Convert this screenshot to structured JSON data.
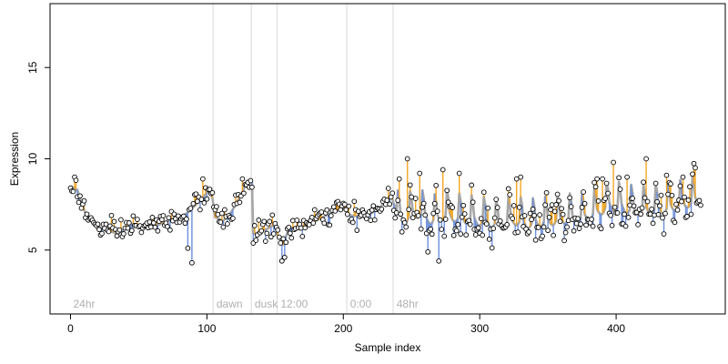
{
  "chart_data": {
    "type": "scatter",
    "title": "",
    "xlabel": "Sample index",
    "ylabel": "Expression",
    "xlim": [
      -15,
      480
    ],
    "ylim": [
      1.5,
      18.5
    ],
    "x_ticks": [
      0,
      100,
      200,
      300,
      400
    ],
    "y_ticks": [
      5,
      10,
      15
    ],
    "grid": false,
    "legend": "none",
    "colors": {
      "trend_line": "#a6a6a6",
      "residual_up": "#f5a623",
      "residual_down": "#6d8fdc",
      "point_stroke": "#000000",
      "point_fill": "#ffffff",
      "separator": "#d9d9d9",
      "segment_label": "#b0b0b0"
    },
    "segments": [
      {
        "label": "24hr",
        "start": 0
      },
      {
        "label": "dawn",
        "start": 105
      },
      {
        "label": "dusk",
        "start": 133
      },
      {
        "label": "12:00",
        "start": 152
      },
      {
        "label": "0:00",
        "start": 203
      },
      {
        "label": "48hr",
        "start": 237
      }
    ],
    "trend_knots": [
      [
        0,
        8.5
      ],
      [
        5,
        8.3
      ],
      [
        8,
        7.6
      ],
      [
        12,
        6.8
      ],
      [
        18,
        6.4
      ],
      [
        25,
        6.1
      ],
      [
        35,
        5.9
      ],
      [
        45,
        6.4
      ],
      [
        55,
        6.3
      ],
      [
        65,
        6.4
      ],
      [
        75,
        6.7
      ],
      [
        85,
        7.0
      ],
      [
        95,
        7.7
      ],
      [
        103,
        8.4
      ],
      [
        106,
        6.8
      ],
      [
        112,
        6.6
      ],
      [
        118,
        7.1
      ],
      [
        124,
        7.9
      ],
      [
        130,
        8.8
      ],
      [
        133,
        8.7
      ],
      [
        134,
        5.9
      ],
      [
        140,
        6.0
      ],
      [
        150,
        6.4
      ],
      [
        152,
        5.8
      ],
      [
        156,
        5.3
      ],
      [
        160,
        6.2
      ],
      [
        170,
        6.3
      ],
      [
        180,
        6.6
      ],
      [
        190,
        7.0
      ],
      [
        200,
        7.3
      ],
      [
        205,
        6.9
      ],
      [
        215,
        6.8
      ],
      [
        225,
        7.2
      ],
      [
        235,
        8.0
      ],
      [
        239,
        7.1
      ],
      [
        245,
        6.9
      ],
      [
        255,
        7.2
      ],
      [
        265,
        6.8
      ],
      [
        275,
        7.1
      ],
      [
        285,
        6.9
      ],
      [
        295,
        6.8
      ],
      [
        305,
        6.7
      ],
      [
        315,
        6.6
      ],
      [
        325,
        6.8
      ],
      [
        335,
        6.6
      ],
      [
        345,
        6.7
      ],
      [
        355,
        6.8
      ],
      [
        365,
        6.9
      ],
      [
        375,
        6.9
      ],
      [
        385,
        7.2
      ],
      [
        395,
        7.6
      ],
      [
        405,
        7.5
      ],
      [
        415,
        7.3
      ],
      [
        425,
        7.4
      ],
      [
        435,
        7.4
      ],
      [
        445,
        7.6
      ],
      [
        455,
        7.8
      ],
      [
        462,
        8.0
      ]
    ],
    "oscillation": {
      "start": 240,
      "amplitude": 1.2,
      "period": 9
    },
    "point_count": 463,
    "point_values_note": "",
    "outliers": [
      {
        "x": 3,
        "y": 9.0
      },
      {
        "x": 89,
        "y": 4.3
      },
      {
        "x": 86,
        "y": 5.1
      },
      {
        "x": 97,
        "y": 8.9
      },
      {
        "x": 155,
        "y": 4.4
      },
      {
        "x": 157,
        "y": 4.6
      },
      {
        "x": 247,
        "y": 10.0
      },
      {
        "x": 256,
        "y": 9.2
      },
      {
        "x": 262,
        "y": 4.9
      },
      {
        "x": 270,
        "y": 4.4
      },
      {
        "x": 273,
        "y": 9.4
      },
      {
        "x": 285,
        "y": 9.2
      },
      {
        "x": 327,
        "y": 8.9
      },
      {
        "x": 330,
        "y": 9.0
      },
      {
        "x": 386,
        "y": 8.9
      },
      {
        "x": 390,
        "y": 8.9
      },
      {
        "x": 398,
        "y": 9.8
      },
      {
        "x": 408,
        "y": 9.0
      },
      {
        "x": 422,
        "y": 10.0
      },
      {
        "x": 437,
        "y": 9.1
      },
      {
        "x": 449,
        "y": 9.0
      },
      {
        "x": 458,
        "y": 9.5
      }
    ]
  }
}
